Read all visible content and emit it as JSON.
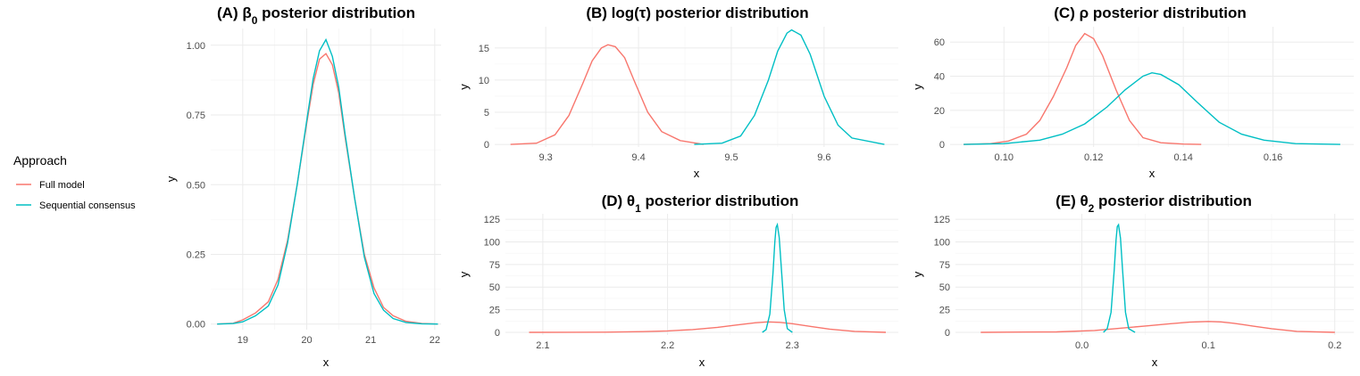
{
  "colors": {
    "full": "#F8766D",
    "seq": "#00BFC4"
  },
  "legend": {
    "title": "Approach",
    "items": [
      {
        "label": "Full model",
        "color": "#F8766D"
      },
      {
        "label": "Sequential consensus",
        "color": "#00BFC4"
      }
    ]
  },
  "chart_data": [
    {
      "id": "A",
      "type": "line",
      "title_parts": [
        "(A) β",
        "0",
        " posterior distribution"
      ],
      "xlabel": "x",
      "ylabel": "y",
      "xlim": [
        18.5,
        22.1
      ],
      "ylim": [
        -0.02,
        1.06
      ],
      "xticks": [
        19,
        20,
        21,
        22
      ],
      "xtick_labels": [
        "19",
        "20",
        "21",
        "22"
      ],
      "yticks": [
        0,
        0.25,
        0.5,
        0.75,
        1.0
      ],
      "ytick_labels": [
        "0.00",
        "0.25",
        "0.50",
        "0.75",
        "1.00"
      ],
      "series": [
        {
          "name": "Full model",
          "kind": "full",
          "x": [
            18.6,
            18.85,
            19.0,
            19.2,
            19.4,
            19.55,
            19.7,
            19.85,
            20.0,
            20.1,
            20.2,
            20.3,
            20.4,
            20.5,
            20.6,
            20.75,
            20.9,
            21.05,
            21.2,
            21.35,
            21.55,
            21.8,
            22.05
          ],
          "y": [
            0.0,
            0.003,
            0.015,
            0.04,
            0.08,
            0.16,
            0.3,
            0.5,
            0.72,
            0.86,
            0.95,
            0.97,
            0.93,
            0.83,
            0.67,
            0.45,
            0.25,
            0.13,
            0.06,
            0.03,
            0.01,
            0.002,
            0.0
          ]
        },
        {
          "name": "Sequential consensus",
          "kind": "seq",
          "x": [
            18.6,
            18.85,
            19.0,
            19.2,
            19.4,
            19.55,
            19.7,
            19.85,
            20.0,
            20.1,
            20.2,
            20.3,
            20.4,
            20.5,
            20.6,
            20.75,
            20.9,
            21.05,
            21.2,
            21.35,
            21.55,
            21.8,
            22.05
          ],
          "y": [
            0.0,
            0.002,
            0.008,
            0.03,
            0.065,
            0.14,
            0.29,
            0.5,
            0.73,
            0.88,
            0.98,
            1.02,
            0.96,
            0.85,
            0.68,
            0.45,
            0.24,
            0.11,
            0.05,
            0.02,
            0.006,
            0.001,
            0.0
          ]
        }
      ]
    },
    {
      "id": "B",
      "type": "line",
      "title_parts": [
        "(B) log(τ) posterior distribution"
      ],
      "xlabel": "x",
      "ylabel": "y",
      "xlim": [
        9.245,
        9.68
      ],
      "ylim": [
        -0.4,
        18.3
      ],
      "xticks": [
        9.3,
        9.4,
        9.5,
        9.6
      ],
      "xtick_labels": [
        "9.3",
        "9.4",
        "9.5",
        "9.6"
      ],
      "yticks": [
        0,
        5,
        10,
        15
      ],
      "ytick_labels": [
        "0",
        "5",
        "10",
        "15"
      ],
      "series": [
        {
          "name": "Full model",
          "kind": "full",
          "x": [
            9.262,
            9.29,
            9.31,
            9.325,
            9.34,
            9.35,
            9.36,
            9.367,
            9.375,
            9.385,
            9.395,
            9.41,
            9.425,
            9.445,
            9.47
          ],
          "y": [
            0.0,
            0.2,
            1.5,
            4.5,
            9.5,
            13.0,
            15.0,
            15.5,
            15.2,
            13.5,
            10.0,
            5.0,
            2.0,
            0.6,
            0.0
          ]
        },
        {
          "name": "Sequential consensus",
          "kind": "seq",
          "x": [
            9.46,
            9.49,
            9.51,
            9.525,
            9.54,
            9.55,
            9.56,
            9.565,
            9.575,
            9.585,
            9.6,
            9.615,
            9.63,
            9.665
          ],
          "y": [
            0.0,
            0.2,
            1.3,
            4.5,
            10.0,
            14.5,
            17.3,
            17.8,
            17.0,
            14.0,
            7.5,
            3.0,
            1.0,
            0.0
          ]
        }
      ]
    },
    {
      "id": "C",
      "type": "line",
      "title_parts": [
        "(C) ρ posterior distribution"
      ],
      "xlabel": "x",
      "ylabel": "y",
      "xlim": [
        0.088,
        0.178
      ],
      "ylim": [
        -1.5,
        69
      ],
      "xticks": [
        0.1,
        0.12,
        0.14,
        0.16
      ],
      "xtick_labels": [
        "0.10",
        "0.12",
        "0.14",
        "0.16"
      ],
      "yticks": [
        0,
        20,
        40,
        60
      ],
      "ytick_labels": [
        "0",
        "20",
        "40",
        "60"
      ],
      "series": [
        {
          "name": "Full model",
          "kind": "full",
          "x": [
            0.091,
            0.097,
            0.101,
            0.105,
            0.108,
            0.111,
            0.114,
            0.116,
            0.118,
            0.12,
            0.122,
            0.125,
            0.128,
            0.131,
            0.135,
            0.14,
            0.144
          ],
          "y": [
            0.0,
            0.5,
            2.0,
            6.0,
            14.0,
            28.0,
            45.0,
            58.0,
            65.0,
            62.0,
            52.0,
            32.0,
            14.0,
            4.0,
            1.0,
            0.2,
            0.0
          ]
        },
        {
          "name": "Sequential consensus",
          "kind": "seq",
          "x": [
            0.091,
            0.1,
            0.108,
            0.113,
            0.118,
            0.123,
            0.127,
            0.131,
            0.133,
            0.135,
            0.139,
            0.143,
            0.148,
            0.153,
            0.158,
            0.165,
            0.175
          ],
          "y": [
            0.0,
            0.5,
            2.5,
            6.0,
            12.0,
            22.0,
            32.0,
            40.0,
            42.0,
            41.0,
            35.0,
            25.0,
            13.0,
            6.0,
            2.5,
            0.5,
            0.0
          ]
        }
      ]
    },
    {
      "id": "D",
      "type": "line",
      "title_parts": [
        "(D) θ",
        "1",
        " posterior distribution"
      ],
      "xlabel": "x",
      "ylabel": "y",
      "xlim": [
        2.07,
        2.385
      ],
      "ylim": [
        -3,
        131
      ],
      "xticks": [
        2.1,
        2.2,
        2.3
      ],
      "xtick_labels": [
        "2.1",
        "2.2",
        "2.3"
      ],
      "yticks": [
        0,
        25,
        50,
        75,
        100,
        125
      ],
      "ytick_labels": [
        "0",
        "25",
        "50",
        "75",
        "100",
        "125"
      ],
      "series": [
        {
          "name": "Full model",
          "kind": "full",
          "x": [
            2.089,
            2.15,
            2.18,
            2.2,
            2.22,
            2.24,
            2.255,
            2.27,
            2.28,
            2.29,
            2.3,
            2.315,
            2.33,
            2.35,
            2.375
          ],
          "y": [
            0.0,
            0.2,
            0.7,
            1.5,
            3.0,
            5.5,
            8.0,
            10.5,
            11.5,
            11.0,
            9.5,
            6.5,
            3.5,
            1.0,
            0.0
          ]
        },
        {
          "name": "Sequential consensus",
          "kind": "seq",
          "x": [
            2.276,
            2.279,
            2.282,
            2.2845,
            2.286,
            2.287,
            2.288,
            2.2895,
            2.291,
            2.2935,
            2.296,
            2.3
          ],
          "y": [
            0.0,
            3.0,
            20.0,
            65.0,
            100.0,
            116.0,
            119.0,
            105.0,
            75.0,
            25.0,
            4.0,
            0.0
          ]
        }
      ]
    },
    {
      "id": "E",
      "type": "line",
      "title_parts": [
        "(E) θ",
        "2",
        " posterior distribution"
      ],
      "xlabel": "x",
      "ylabel": "y",
      "xlim": [
        -0.1,
        0.215
      ],
      "ylim": [
        -3,
        131
      ],
      "xticks": [
        0.0,
        0.1,
        0.2
      ],
      "xtick_labels": [
        "0.0",
        "0.1",
        "0.2"
      ],
      "yticks": [
        0,
        25,
        50,
        75,
        100,
        125
      ],
      "ytick_labels": [
        "0",
        "25",
        "50",
        "75",
        "100",
        "125"
      ],
      "series": [
        {
          "name": "Full model",
          "kind": "full",
          "x": [
            -0.08,
            -0.02,
            0.01,
            0.03,
            0.05,
            0.07,
            0.085,
            0.1,
            0.11,
            0.12,
            0.135,
            0.15,
            0.17,
            0.2
          ],
          "y": [
            0.0,
            0.4,
            2.0,
            4.5,
            7.0,
            9.5,
            11.2,
            12.0,
            11.5,
            10.0,
            7.0,
            4.0,
            1.0,
            0.0
          ]
        },
        {
          "name": "Sequential consensus",
          "kind": "seq",
          "x": [
            0.017,
            0.02,
            0.023,
            0.0255,
            0.027,
            0.028,
            0.029,
            0.0305,
            0.032,
            0.0345,
            0.037,
            0.042
          ],
          "y": [
            0.0,
            4.0,
            22.0,
            68.0,
            102.0,
            117.0,
            119.0,
            104.0,
            72.0,
            22.0,
            4.0,
            0.0
          ]
        }
      ]
    }
  ]
}
